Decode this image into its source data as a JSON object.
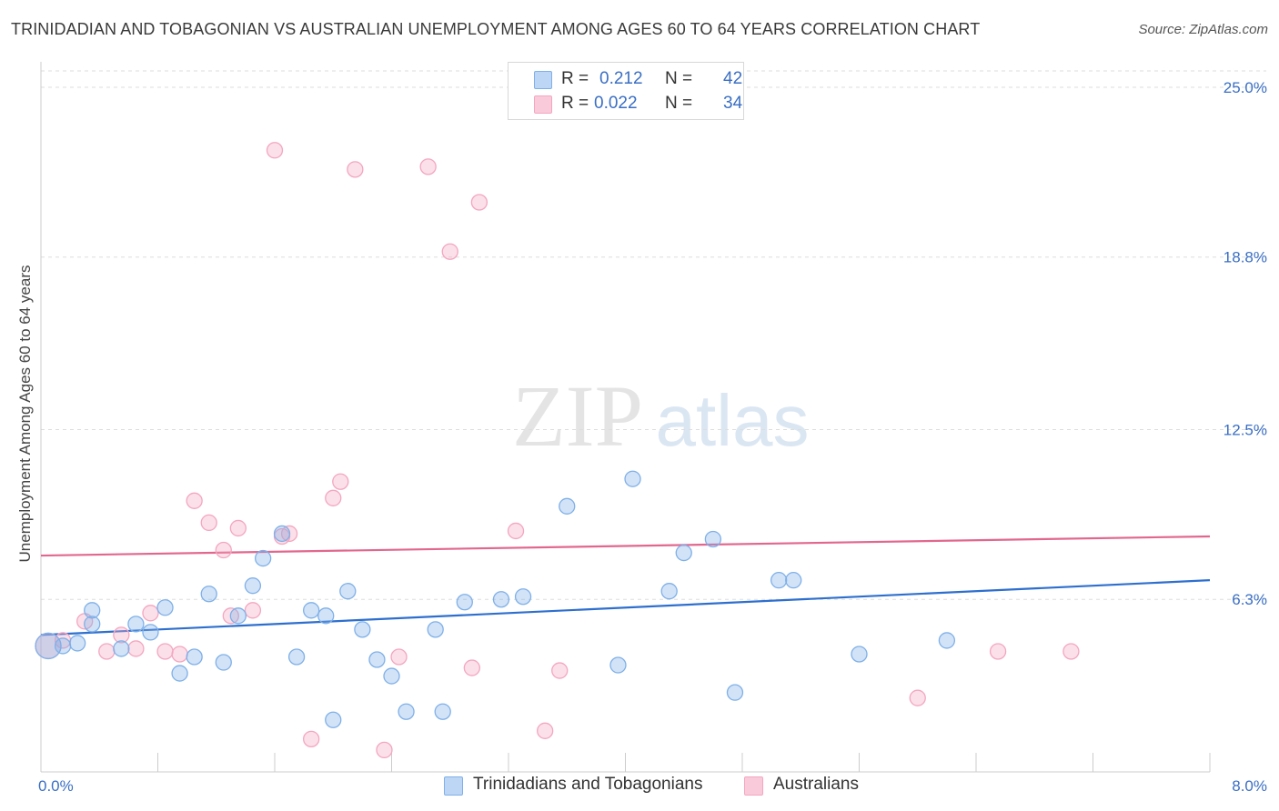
{
  "header": {
    "title": "TRINIDADIAN AND TOBAGONIAN VS AUSTRALIAN UNEMPLOYMENT AMONG AGES 60 TO 64 YEARS CORRELATION CHART",
    "source": "Source: ZipAtlas.com"
  },
  "watermark": {
    "zip": "ZIP",
    "atlas": "atlas"
  },
  "legend": {
    "r_label": "R =",
    "n_label": "N =",
    "rows": [
      {
        "r": "0.212",
        "n": "42"
      },
      {
        "r": "0.022",
        "n": "34"
      }
    ]
  },
  "chart_data": {
    "type": "scatter",
    "xlabel": "",
    "ylabel": "Unemployment Among Ages 60 to 64 years",
    "xlim": [
      0,
      8
    ],
    "ylim": [
      0,
      25
    ],
    "x_tick_labels": [
      "0.0%",
      "8.0%"
    ],
    "y_ticks": [
      6.3,
      12.5,
      18.8,
      25.0
    ],
    "y_tick_labels": [
      "6.3%",
      "12.5%",
      "18.8%",
      "25.0%"
    ],
    "grid": "horizontal-dashed",
    "series": [
      {
        "name": "Trinidadians and Tobagonians",
        "color": "#7fb0e8",
        "line_color": "#2e6fce",
        "trend": [
          [
            0,
            5.0
          ],
          [
            8,
            7.0
          ]
        ],
        "points": [
          [
            0.05,
            4.6
          ],
          [
            0.15,
            4.6
          ],
          [
            0.25,
            4.7
          ],
          [
            0.35,
            5.9
          ],
          [
            0.35,
            5.4
          ],
          [
            0.55,
            4.5
          ],
          [
            0.65,
            5.4
          ],
          [
            0.75,
            5.1
          ],
          [
            0.85,
            6.0
          ],
          [
            0.95,
            3.6
          ],
          [
            1.05,
            4.2
          ],
          [
            1.15,
            6.5
          ],
          [
            1.25,
            4.0
          ],
          [
            1.35,
            5.7
          ],
          [
            1.45,
            6.8
          ],
          [
            1.52,
            7.8
          ],
          [
            1.65,
            8.7
          ],
          [
            1.75,
            4.2
          ],
          [
            1.85,
            5.9
          ],
          [
            1.95,
            5.7
          ],
          [
            2.0,
            1.9
          ],
          [
            2.1,
            6.6
          ],
          [
            2.2,
            5.2
          ],
          [
            2.3,
            4.1
          ],
          [
            2.4,
            3.5
          ],
          [
            2.5,
            2.2
          ],
          [
            2.7,
            5.2
          ],
          [
            2.75,
            2.2
          ],
          [
            2.9,
            6.2
          ],
          [
            3.15,
            6.3
          ],
          [
            3.3,
            6.4
          ],
          [
            3.6,
            9.7
          ],
          [
            3.95,
            3.9
          ],
          [
            4.05,
            10.7
          ],
          [
            4.3,
            6.6
          ],
          [
            4.4,
            8.0
          ],
          [
            4.6,
            8.5
          ],
          [
            4.75,
            2.9
          ],
          [
            5.05,
            7.0
          ],
          [
            5.15,
            7.0
          ],
          [
            5.6,
            4.3
          ],
          [
            6.2,
            4.8
          ]
        ]
      },
      {
        "name": "Australians",
        "color": "#f3a6c0",
        "line_color": "#e2678f",
        "trend": [
          [
            0,
            7.9
          ],
          [
            8,
            8.6
          ]
        ],
        "points": [
          [
            0.05,
            4.6
          ],
          [
            0.15,
            4.8
          ],
          [
            0.3,
            5.5
          ],
          [
            0.45,
            4.4
          ],
          [
            0.55,
            5.0
          ],
          [
            0.65,
            4.5
          ],
          [
            0.75,
            5.8
          ],
          [
            0.85,
            4.4
          ],
          [
            0.95,
            4.3
          ],
          [
            1.05,
            9.9
          ],
          [
            1.15,
            9.1
          ],
          [
            1.25,
            8.1
          ],
          [
            1.3,
            5.7
          ],
          [
            1.35,
            8.9
          ],
          [
            1.45,
            5.9
          ],
          [
            1.6,
            22.7
          ],
          [
            1.65,
            8.6
          ],
          [
            1.7,
            8.7
          ],
          [
            1.85,
            1.2
          ],
          [
            2.0,
            10.0
          ],
          [
            2.05,
            10.6
          ],
          [
            2.15,
            22.0
          ],
          [
            2.35,
            0.8
          ],
          [
            2.45,
            4.2
          ],
          [
            2.65,
            22.1
          ],
          [
            2.8,
            19.0
          ],
          [
            2.95,
            3.8
          ],
          [
            3.0,
            20.8
          ],
          [
            3.25,
            8.8
          ],
          [
            3.45,
            1.5
          ],
          [
            3.55,
            3.7
          ],
          [
            6.0,
            2.7
          ],
          [
            6.55,
            4.4
          ],
          [
            7.05,
            4.4
          ]
        ]
      }
    ]
  }
}
